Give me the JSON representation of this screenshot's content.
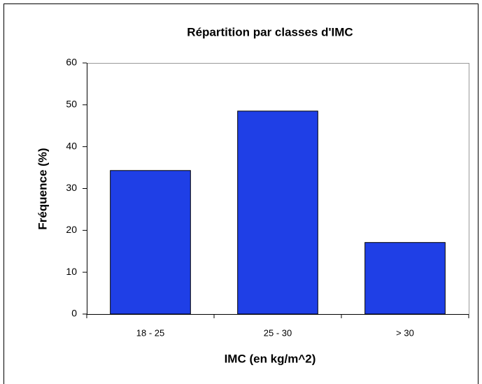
{
  "chart_data": {
    "type": "bar",
    "title": "Répartition par classes d'IMC",
    "x_label": "IMC (en kg/m^2)",
    "y_label": "Fréquence (%)",
    "categories": [
      "18 - 25",
      "25 - 30",
      "> 30"
    ],
    "values": [
      34.3,
      48.5,
      17.1
    ],
    "color": "#1f3fe6",
    "ylim": [
      0,
      60
    ],
    "yticks": [
      0,
      10,
      20,
      30,
      40,
      50,
      60
    ]
  }
}
